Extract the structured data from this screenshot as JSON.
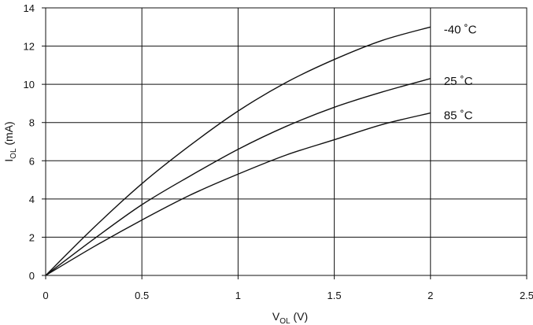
{
  "chart_data": {
    "type": "line",
    "xlabel": {
      "main": "V",
      "sub": "OL",
      "unit": " (V)"
    },
    "ylabel": {
      "main": "I",
      "sub": "OL",
      "unit": " (mA)"
    },
    "xlim": [
      0,
      2.5
    ],
    "ylim": [
      0,
      14
    ],
    "x_ticks": [
      0,
      0.5,
      1,
      1.5,
      2,
      2.5
    ],
    "x_tick_labels": [
      "0",
      "0.5",
      "1",
      "1.5",
      "2",
      "2.5"
    ],
    "y_ticks": [
      0,
      2,
      4,
      6,
      8,
      10,
      12,
      14
    ],
    "y_tick_labels": [
      "0",
      "2",
      "4",
      "6",
      "8",
      "10",
      "12",
      "14"
    ],
    "grid": true,
    "x": [
      0,
      0.25,
      0.5,
      0.75,
      1.0,
      1.25,
      1.5,
      1.75,
      2.0
    ],
    "series": [
      {
        "name": "-40 ˚C",
        "values": [
          0,
          2.5,
          4.8,
          6.8,
          8.6,
          10.1,
          11.3,
          12.3,
          13.0
        ]
      },
      {
        "name": "25 ˚C",
        "values": [
          0,
          1.9,
          3.7,
          5.2,
          6.6,
          7.8,
          8.8,
          9.6,
          10.3
        ]
      },
      {
        "name": "85 ˚C",
        "values": [
          0,
          1.5,
          2.9,
          4.2,
          5.3,
          6.3,
          7.1,
          7.9,
          8.5
        ]
      }
    ]
  }
}
